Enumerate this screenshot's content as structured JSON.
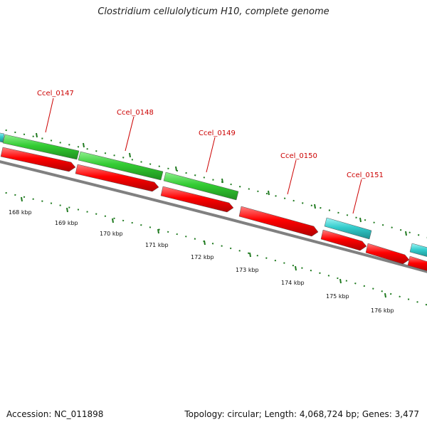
{
  "title": "Clostridium cellulolyticum H10, complete genome",
  "footer": {
    "accession": "Accession: NC_011898",
    "summary": "Topology: circular; Length: 4,068,724 bp; Genes: 3,477"
  },
  "colors": {
    "cds_forward": "#33cc33",
    "cds_reverse": "#ff0000",
    "rna": "#33cccc",
    "backbone": "#808080",
    "ticks": "#1f7a1f",
    "gene_label": "#cc0000"
  },
  "gene_labels": [
    "Ccel_0147",
    "Ccel_0148",
    "Ccel_0149",
    "Ccel_0150",
    "Ccel_0151"
  ],
  "scale_labels": [
    "168 kbp",
    "169 kbp",
    "170 kbp",
    "171 kbp",
    "172 kbp",
    "173 kbp",
    "174 kbp",
    "175 kbp",
    "176 kbp"
  ]
}
